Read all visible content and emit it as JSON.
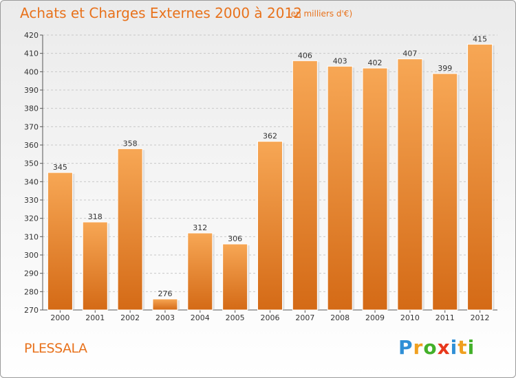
{
  "header": {
    "title": "Achats et Charges Externes 2000 à 2012",
    "subtitle": "(en milliers d'€)"
  },
  "footer": {
    "place": "PLESSALA",
    "logo_text": "Proxiti"
  },
  "colors": {
    "accent": "#e8721c",
    "bar_top": "#f7a755",
    "bar_bottom": "#d46a16"
  },
  "chart_data": {
    "type": "bar",
    "title": "Achats et Charges Externes 2000 à 2012",
    "subtitle": "(en milliers d'€)",
    "categories": [
      "2000",
      "2001",
      "2002",
      "2003",
      "2004",
      "2005",
      "2006",
      "2007",
      "2008",
      "2009",
      "2010",
      "2011",
      "2012"
    ],
    "values": [
      345,
      318,
      358,
      276,
      312,
      306,
      362,
      406,
      403,
      402,
      407,
      399,
      415
    ],
    "ylim": [
      270,
      420
    ],
    "yticks": [
      270,
      280,
      290,
      300,
      310,
      320,
      330,
      340,
      350,
      360,
      370,
      380,
      390,
      400,
      410,
      420
    ],
    "grid": true,
    "legend": "none"
  }
}
